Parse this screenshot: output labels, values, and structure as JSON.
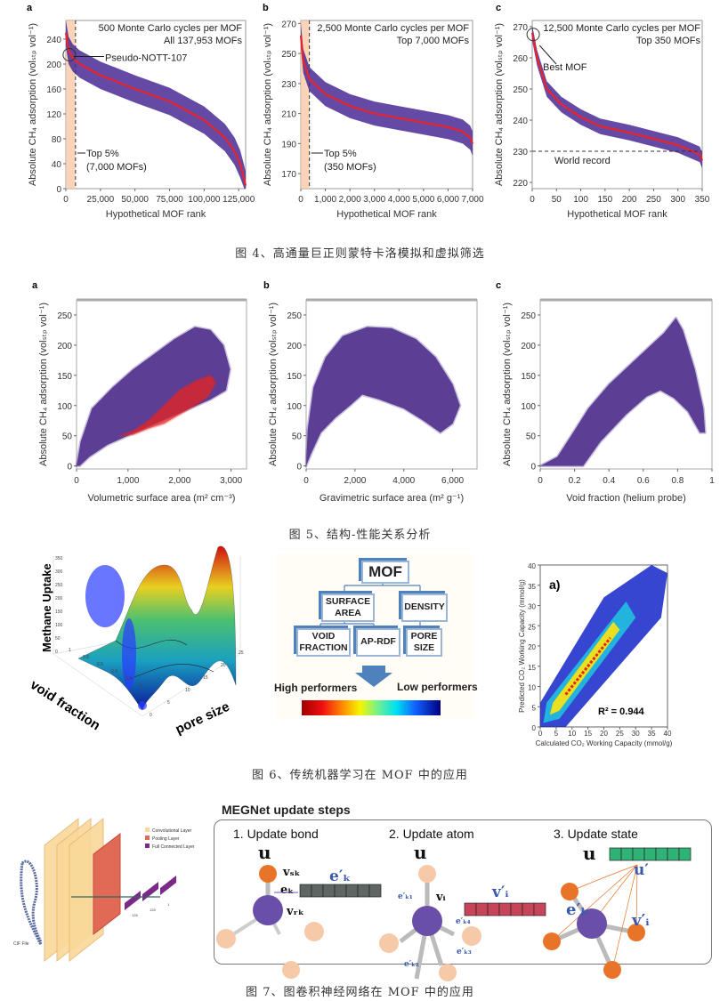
{
  "figure4": {
    "caption": "图 4、高通量巨正则蒙特卡洛模拟和虚拟筛选",
    "chart_data": [
      {
        "type": "line",
        "panel": "a",
        "title": "",
        "annotations": [
          "500 Monte Carlo cycles per MOF",
          "All 137,953 MOFs",
          "Pseudo-NOTT-107",
          "Top 5%",
          "(7,000 MOFs)"
        ],
        "xlabel": "Hypothetical MOF rank",
        "ylabel": "Absolute CH₄ adsorption (volₛₜₚ vol⁻¹)",
        "xlim": [
          0,
          130000
        ],
        "ylim": [
          0,
          270
        ],
        "xticks": [
          0,
          25000,
          50000,
          75000,
          100000,
          125000
        ],
        "xtick_labels": [
          "0",
          "25,000",
          "50,000",
          "75,000",
          "100,000",
          "125,000"
        ],
        "yticks": [
          0,
          40,
          80,
          120,
          160,
          200,
          240
        ],
        "ytick_labels": [
          "0",
          "40",
          "80",
          "120",
          "160",
          "200",
          "240"
        ],
        "top_cut": 7000,
        "band": 22,
        "x": [
          0,
          2000,
          5000,
          10000,
          25000,
          50000,
          75000,
          100000,
          115000,
          122000,
          126000,
          129000,
          130000
        ],
        "y": [
          250,
          222,
          210,
          200,
          182,
          160,
          140,
          110,
          82,
          60,
          40,
          15,
          5
        ]
      },
      {
        "type": "line",
        "panel": "b",
        "annotations": [
          "2,500 Monte Carlo cycles per MOF",
          "Top 7,000 MOFs",
          "Top 5%",
          "(350 MOFs)"
        ],
        "xlabel": "Hypothetical MOF rank",
        "ylabel": "Absolute CH₄ adsorption (volₛₜₚ vol⁻¹)",
        "xlim": [
          0,
          7000
        ],
        "ylim": [
          160,
          272
        ],
        "xticks": [
          0,
          1000,
          2000,
          3000,
          4000,
          5000,
          6000,
          7000
        ],
        "xtick_labels": [
          "0",
          "1,000",
          "2,000",
          "3,000",
          "4,000",
          "5,000",
          "6,000",
          "7,000"
        ],
        "yticks": [
          170,
          190,
          210,
          230,
          250,
          270
        ],
        "ytick_labels": [
          "170",
          "190",
          "210",
          "230",
          "250",
          "270"
        ],
        "top_cut": 350,
        "band": 8,
        "x": [
          0,
          100,
          350,
          1000,
          2000,
          3000,
          4000,
          5000,
          6000,
          6600,
          6900,
          7000
        ],
        "y": [
          262,
          245,
          233,
          223,
          215,
          210,
          207,
          204,
          201,
          198,
          194,
          190
        ]
      },
      {
        "type": "line",
        "panel": "c",
        "annotations": [
          "12,500 Monte Carlo cycles per MOF",
          "Top 350 MOFs",
          "Best MOF",
          "World record"
        ],
        "xlabel": "Hypothetical MOF rank",
        "ylabel": "Absolute CH₄ adsorption (volₛₜₚ vol⁻¹)",
        "xlim": [
          0,
          350
        ],
        "ylim": [
          218,
          272
        ],
        "xticks": [
          0,
          50,
          100,
          150,
          200,
          250,
          300,
          350
        ],
        "xtick_labels": [
          "0",
          "50",
          "100",
          "150",
          "200",
          "250",
          "300",
          "350"
        ],
        "yticks": [
          220,
          230,
          240,
          250,
          260,
          270
        ],
        "ytick_labels": [
          "220",
          "230",
          "240",
          "250",
          "260",
          "270"
        ],
        "world_record": 230,
        "band": 2.5,
        "x": [
          0,
          10,
          30,
          60,
          100,
          140,
          200,
          250,
          300,
          330,
          345,
          350
        ],
        "y": [
          268,
          260,
          250,
          245,
          241,
          238,
          236,
          234,
          232,
          230,
          229,
          227
        ]
      }
    ]
  },
  "figure5": {
    "caption": "图 5、结构-性能关系分析",
    "chart_data": [
      {
        "type": "scatter",
        "panel": "a",
        "xlabel": "Volumetric surface area (m² cm⁻³)",
        "ylabel": "Absolute CH₄ adsorption (volₛₜₚ vol⁻¹)",
        "xlim": [
          0,
          3300
        ],
        "ylim": [
          -5,
          275
        ],
        "xticks": [
          0,
          1000,
          2000,
          3000
        ],
        "xtick_labels": [
          "0",
          "1,000",
          "2,000",
          "3,000"
        ],
        "yticks": [
          0,
          50,
          100,
          150,
          200,
          250
        ],
        "ytick_labels": [
          "0",
          "50",
          "100",
          "150",
          "200",
          "250"
        ],
        "series": [
          {
            "name": "all",
            "color": "#4b2a8a",
            "envelope": [
              [
                0,
                0
              ],
              [
                80,
                40
              ],
              [
                300,
                95
              ],
              [
                700,
                130
              ],
              [
                1100,
                160
              ],
              [
                1500,
                185
              ],
              [
                1900,
                210
              ],
              [
                2300,
                230
              ],
              [
                2600,
                225
              ],
              [
                2850,
                200
              ],
              [
                2980,
                160
              ],
              [
                2900,
                125
              ],
              [
                2600,
                110
              ],
              [
                2200,
                95
              ],
              [
                1800,
                80
              ],
              [
                1400,
                65
              ],
              [
                1000,
                50
              ],
              [
                600,
                35
              ],
              [
                250,
                15
              ],
              [
                60,
                0
              ]
            ]
          },
          {
            "name": "highlighted",
            "color": "#e8231f",
            "envelope": [
              [
                850,
                50
              ],
              [
                1100,
                58
              ],
              [
                1400,
                75
              ],
              [
                1700,
                100
              ],
              [
                2000,
                125
              ],
              [
                2300,
                140
              ],
              [
                2600,
                150
              ],
              [
                2700,
                138
              ],
              [
                2550,
                115
              ],
              [
                2300,
                100
              ],
              [
                2000,
                85
              ],
              [
                1700,
                70
              ],
              [
                1400,
                62
              ],
              [
                1100,
                52
              ]
            ]
          }
        ]
      },
      {
        "type": "scatter",
        "panel": "b",
        "xlabel": "Gravimetric surface area (m² g⁻¹)",
        "ylabel": "Absolute CH₄ adsorption (volₛₜₚ vol⁻¹)",
        "xlim": [
          0,
          7000
        ],
        "ylim": [
          -5,
          275
        ],
        "xticks": [
          0,
          2000,
          4000,
          6000
        ],
        "xtick_labels": [
          "0",
          "2,000",
          "4,000",
          "6,000"
        ],
        "yticks": [
          0,
          50,
          100,
          150,
          200,
          250
        ],
        "ytick_labels": [
          "0",
          "50",
          "100",
          "150",
          "200",
          "250"
        ],
        "series": [
          {
            "name": "all",
            "color": "#4b2a8a",
            "envelope": [
              [
                0,
                0
              ],
              [
                60,
                60
              ],
              [
                300,
                130
              ],
              [
                800,
                180
              ],
              [
                1500,
                215
              ],
              [
                2500,
                230
              ],
              [
                3500,
                228
              ],
              [
                4500,
                210
              ],
              [
                5300,
                180
              ],
              [
                6000,
                135
              ],
              [
                6300,
                100
              ],
              [
                6000,
                70
              ],
              [
                5500,
                55
              ],
              [
                4800,
                75
              ],
              [
                4000,
                95
              ],
              [
                3000,
                110
              ],
              [
                2300,
                118
              ],
              [
                1800,
                100
              ],
              [
                1200,
                80
              ],
              [
                600,
                55
              ],
              [
                200,
                20
              ]
            ]
          }
        ]
      },
      {
        "type": "scatter",
        "panel": "c",
        "xlabel": "Void fraction (helium probe)",
        "ylabel": "Absolute CH₄ adsorption (volₛₜₚ vol⁻¹)",
        "xlim": [
          0,
          1
        ],
        "ylim": [
          -5,
          275
        ],
        "xticks": [
          0,
          0.2,
          0.4,
          0.6,
          0.8,
          1
        ],
        "xtick_labels": [
          "0",
          "0.2",
          "0.4",
          "0.6",
          "0.8",
          "1"
        ],
        "yticks": [
          0,
          50,
          100,
          150,
          200,
          250
        ],
        "ytick_labels": [
          "0",
          "50",
          "100",
          "150",
          "200",
          "250"
        ],
        "series": [
          {
            "name": "all",
            "color": "#4b2a8a",
            "envelope": [
              [
                0,
                0
              ],
              [
                0.25,
                0
              ],
              [
                0.35,
                40
              ],
              [
                0.5,
                85
              ],
              [
                0.62,
                115
              ],
              [
                0.7,
                125
              ],
              [
                0.78,
                112
              ],
              [
                0.86,
                90
              ],
              [
                0.93,
                55
              ],
              [
                0.96,
                55
              ],
              [
                0.95,
                95
              ],
              [
                0.9,
                160
              ],
              [
                0.83,
                225
              ],
              [
                0.79,
                245
              ],
              [
                0.72,
                220
              ],
              [
                0.55,
                175
              ],
              [
                0.4,
                135
              ],
              [
                0.28,
                95
              ],
              [
                0.18,
                50
              ],
              [
                0.1,
                15
              ]
            ]
          }
        ]
      }
    ]
  },
  "figure6": {
    "caption": "图 6、传统机器学习在 MOF 中的应用",
    "surface": {
      "zlabel": "Methane Uptake",
      "xlabel": "void fraction",
      "ylabel": "pore size",
      "z_ticks": [
        "350",
        "300",
        "250",
        "200",
        "150",
        "100",
        "50",
        "0"
      ],
      "x_ticks": [
        "1",
        "0.8",
        "0.6",
        "0.4",
        "0.2",
        "0"
      ],
      "y_ticks": [
        "0",
        "5",
        "10",
        "15",
        "20",
        "25"
      ]
    },
    "flowchart": {
      "root": "MOF",
      "level1": [
        "SURFACE AREA",
        "DENSITY"
      ],
      "level2": [
        "VOID FRACTION",
        "AP-RDF",
        "PORE SIZE"
      ],
      "high": "High performers",
      "low": "Low performers"
    },
    "chart_data": {
      "type": "scatter",
      "panel": "a)",
      "title": "a)",
      "xlabel": "Calculated CO₂ Working Capacity (mmol/g)",
      "ylabel": "Predicted CO₂ Working Capacity (mmol/g)",
      "xlim": [
        0,
        40
      ],
      "ylim": [
        0,
        40
      ],
      "xticks": [
        0,
        5,
        10,
        15,
        20,
        25,
        30,
        35,
        40
      ],
      "yticks": [
        0,
        5,
        10,
        15,
        20,
        25,
        30,
        35,
        40
      ],
      "annotation": "R² = 0.944",
      "r2": 0.944,
      "fit_slope": 1.0
    }
  },
  "figure7": {
    "caption": "图 7、图卷积神经网络在 MOF 中的应用",
    "cnn": {
      "legend": [
        "Convolutional Layer",
        "Pooling Layer",
        "Full Connected Layer"
      ],
      "input": "CIF File",
      "dims": [
        "128",
        "128",
        "1"
      ],
      "colors": {
        "conv": "#f9d89a",
        "pool": "#e06a55",
        "fc": "#7b2a8a"
      }
    },
    "megnet": {
      "title": "MEGNet update steps",
      "steps": [
        {
          "title": "1. Update bond",
          "labels": [
            "u",
            "vₛₖ",
            "eₖ",
            "vᵣₖ",
            "e′ₖ"
          ]
        },
        {
          "title": "2. Update atom",
          "labels": [
            "u",
            "vᵢ",
            "e′ₖ₁",
            "e′ₖ₂",
            "e′ₖ₃",
            "e′ₖ₄",
            "v′ᵢ"
          ]
        },
        {
          "title": "3. Update state",
          "labels": [
            "u",
            "u′",
            "e′ₖ",
            "v′ᵢ"
          ]
        }
      ],
      "colors": {
        "bond_vec": "#5f6563",
        "atom_vec": "#c8445a",
        "state_vec": "#2fb276",
        "atom": "#6a4fa8",
        "neighbor": "#e8742a"
      }
    }
  }
}
